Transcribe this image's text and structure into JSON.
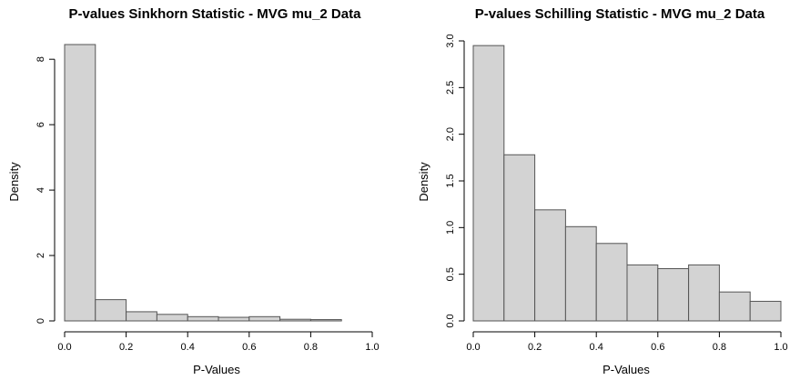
{
  "chart_data": [
    {
      "type": "bar",
      "title": "P-values Sinkhorn Statistic - MVG mu_2 Data",
      "xlabel": "P-Values",
      "ylabel": "Density",
      "bin_edges": [
        0.0,
        0.1,
        0.2,
        0.3,
        0.4,
        0.5,
        0.6,
        0.7,
        0.8,
        0.9,
        1.0
      ],
      "values": [
        8.45,
        0.65,
        0.28,
        0.2,
        0.13,
        0.11,
        0.13,
        0.05,
        0.04,
        0.0
      ],
      "xlim": [
        0,
        1
      ],
      "ylim": [
        0,
        8.45
      ],
      "xticks": [
        "0.0",
        "0.2",
        "0.4",
        "0.6",
        "0.8",
        "1.0"
      ],
      "yticks": [
        "0",
        "2",
        "4",
        "6",
        "8"
      ],
      "bar_color": "#d3d3d3",
      "grid": false
    },
    {
      "type": "bar",
      "title": "P-values Schilling Statistic - MVG mu_2 Data",
      "xlabel": "P-Values",
      "ylabel": "Density",
      "bin_edges": [
        0.0,
        0.1,
        0.2,
        0.3,
        0.4,
        0.5,
        0.6,
        0.7,
        0.8,
        0.9,
        1.0
      ],
      "values": [
        2.95,
        1.78,
        1.19,
        1.01,
        0.83,
        0.6,
        0.56,
        0.6,
        0.31,
        0.21
      ],
      "xlim": [
        0,
        1
      ],
      "ylim": [
        0,
        3.0
      ],
      "xticks": [
        "0.0",
        "0.2",
        "0.4",
        "0.6",
        "0.8",
        "1.0"
      ],
      "yticks": [
        "0.0",
        "0.5",
        "1.0",
        "1.5",
        "2.0",
        "2.5",
        "3.0"
      ],
      "bar_color": "#d3d3d3",
      "grid": false
    }
  ]
}
